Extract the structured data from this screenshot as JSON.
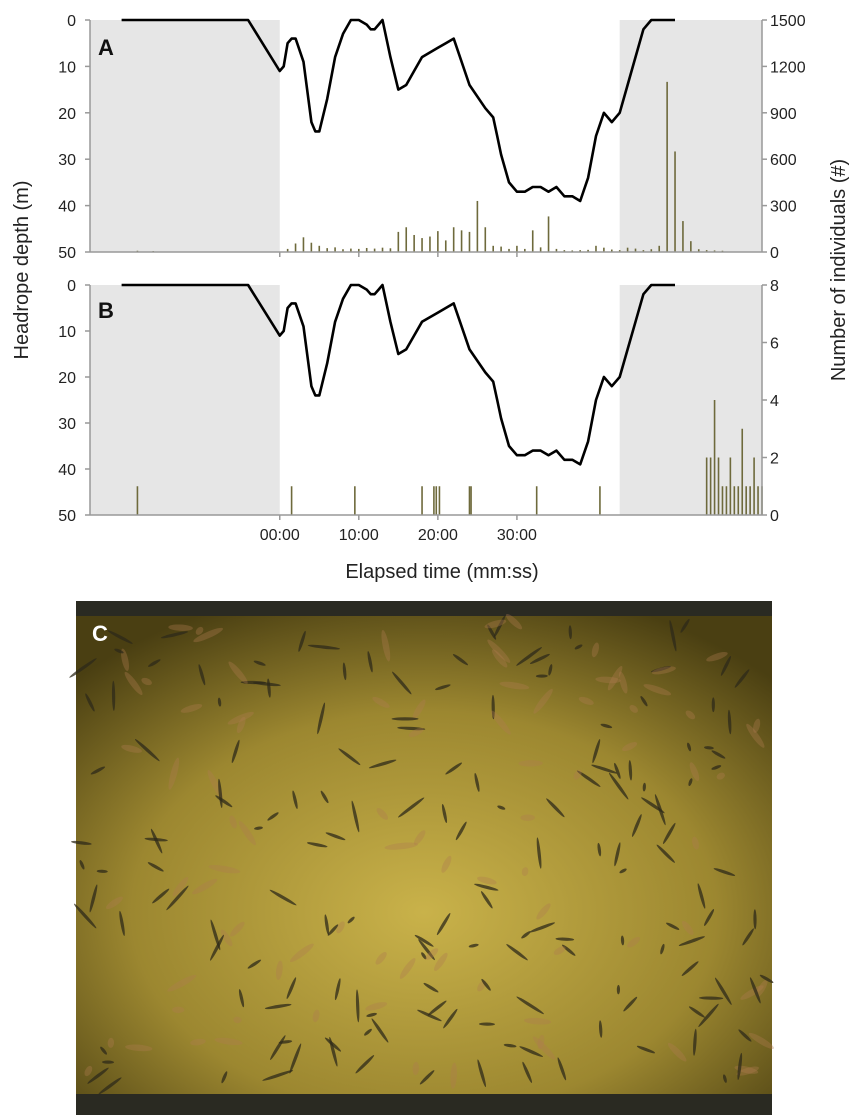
{
  "figure": {
    "ylabel_left": "Headrope depth (m)",
    "ylabel_right": "Number of individuals (#)",
    "xlabel": "Elapsed time (mm:ss)",
    "x_tick_labels": [
      "00:00",
      "10:00",
      "20:00",
      "30:00"
    ],
    "depth_tick_labels": [
      "0",
      "10",
      "20",
      "30",
      "40",
      "50"
    ]
  },
  "photo": {
    "letter": "C",
    "colors": {
      "center": "#c9b24a",
      "edge": "#4a3f12",
      "frame": "#2a2a22"
    }
  },
  "chart_data": [
    {
      "type": "line",
      "panel": "A",
      "letter": "A",
      "x_unit": "minutes elapsed",
      "xlim": [
        -24,
        61
      ],
      "ylim_left": [
        50,
        0
      ],
      "ylim_right": [
        0,
        1500
      ],
      "right_tick_labels": [
        "0",
        "300",
        "600",
        "900",
        "1200",
        "1500"
      ],
      "colors": {
        "depth_line": "#000000",
        "counts": "#6e6a3c",
        "shade": "#e6e6e6"
      },
      "shaded_regions": [
        [
          -24,
          0
        ],
        [
          43,
          61
        ]
      ],
      "depth_series": {
        "x": [
          -20,
          -4,
          0,
          0.5,
          1,
          1.5,
          2,
          3,
          4,
          4.5,
          5,
          6,
          7,
          8,
          9,
          10,
          11,
          11.5,
          12,
          12.5,
          13,
          14,
          15,
          16,
          17,
          18,
          20,
          21,
          22,
          24,
          26,
          27,
          27.5,
          28,
          29,
          30,
          31,
          32,
          33,
          34,
          35,
          36,
          37,
          38,
          39,
          40,
          41,
          42,
          43,
          44,
          45,
          46,
          47,
          48,
          49,
          50
        ],
        "y": [
          0,
          0,
          11,
          10,
          5,
          4,
          4,
          9,
          22,
          24,
          24,
          17,
          8,
          3,
          0,
          0,
          1,
          2,
          2,
          1,
          0,
          8,
          15,
          14,
          11,
          8,
          6,
          5,
          4,
          14,
          19,
          21,
          25,
          29,
          35,
          37,
          37,
          36,
          36,
          37,
          36,
          38,
          38,
          39,
          34,
          25,
          20,
          22,
          20,
          14,
          8,
          2,
          0,
          0,
          0,
          0
        ]
      },
      "count_series": {
        "x": [
          -18,
          -16,
          1,
          2,
          3,
          4,
          5,
          6,
          7,
          8,
          9,
          10,
          11,
          12,
          13,
          14,
          15,
          16,
          17,
          18,
          19,
          20,
          21,
          22,
          23,
          24,
          25,
          26,
          27,
          28,
          29,
          30,
          31,
          32,
          33,
          34,
          35,
          36,
          37,
          38,
          39,
          40,
          41,
          42,
          43,
          44,
          45,
          46,
          47,
          48,
          49,
          50,
          51,
          52,
          53,
          54,
          55,
          56
        ],
        "values": [
          8,
          6,
          20,
          55,
          95,
          60,
          40,
          25,
          30,
          18,
          22,
          20,
          26,
          22,
          28,
          24,
          130,
          160,
          110,
          90,
          100,
          135,
          75,
          160,
          140,
          130,
          330,
          160,
          40,
          35,
          20,
          40,
          20,
          140,
          30,
          230,
          20,
          12,
          10,
          12,
          14,
          40,
          28,
          16,
          12,
          28,
          22,
          12,
          18,
          40,
          1100,
          650,
          200,
          70,
          18,
          12,
          10,
          8
        ]
      }
    },
    {
      "type": "bar",
      "panel": "B",
      "letter": "B",
      "x_unit": "minutes elapsed",
      "xlim": [
        -24,
        61
      ],
      "ylim_left": [
        50,
        0
      ],
      "ylim_right": [
        0,
        8
      ],
      "right_tick_labels": [
        "0",
        "2",
        "4",
        "6",
        "8"
      ],
      "colors": {
        "depth_line": "#000000",
        "counts": "#6e6a3c",
        "shade": "#e6e6e6"
      },
      "shaded_regions": [
        [
          -24,
          0
        ],
        [
          43,
          61
        ]
      ],
      "depth_series": {
        "x": [
          -20,
          -4,
          0,
          0.5,
          1,
          1.5,
          2,
          3,
          4,
          4.5,
          5,
          6,
          7,
          8,
          9,
          10,
          11,
          11.5,
          12,
          12.5,
          13,
          14,
          15,
          16,
          17,
          18,
          20,
          21,
          22,
          24,
          26,
          27,
          27.5,
          28,
          29,
          30,
          31,
          32,
          33,
          34,
          35,
          36,
          37,
          38,
          39,
          40,
          41,
          42,
          43,
          44,
          45,
          46,
          47,
          48,
          49,
          50
        ],
        "y": [
          0,
          0,
          11,
          10,
          5,
          4,
          4,
          9,
          22,
          24,
          24,
          17,
          8,
          3,
          0,
          0,
          1,
          2,
          2,
          1,
          0,
          8,
          15,
          14,
          11,
          8,
          6,
          5,
          4,
          14,
          19,
          21,
          25,
          29,
          35,
          37,
          37,
          36,
          36,
          37,
          36,
          38,
          38,
          39,
          34,
          25,
          20,
          22,
          20,
          14,
          8,
          2,
          0,
          0,
          0,
          0
        ]
      },
      "count_series": {
        "x": [
          -18,
          1.5,
          9.5,
          18,
          19.5,
          19.8,
          20.2,
          24,
          24.2,
          32.5,
          40.5,
          54,
          54.5,
          55,
          55.5,
          56,
          56.5,
          57,
          57.5,
          58,
          58.5,
          59,
          59.5,
          60,
          60.5,
          61,
          61.5,
          62,
          62.5,
          63,
          63.5,
          64,
          65
        ],
        "values": [
          1,
          1,
          1,
          1,
          1,
          1,
          1,
          1,
          1,
          1,
          1,
          2,
          2,
          4,
          2,
          1,
          1,
          2,
          1,
          1,
          3,
          1,
          1,
          2,
          1,
          1,
          1,
          1,
          1,
          1,
          1,
          1,
          1
        ]
      }
    }
  ]
}
